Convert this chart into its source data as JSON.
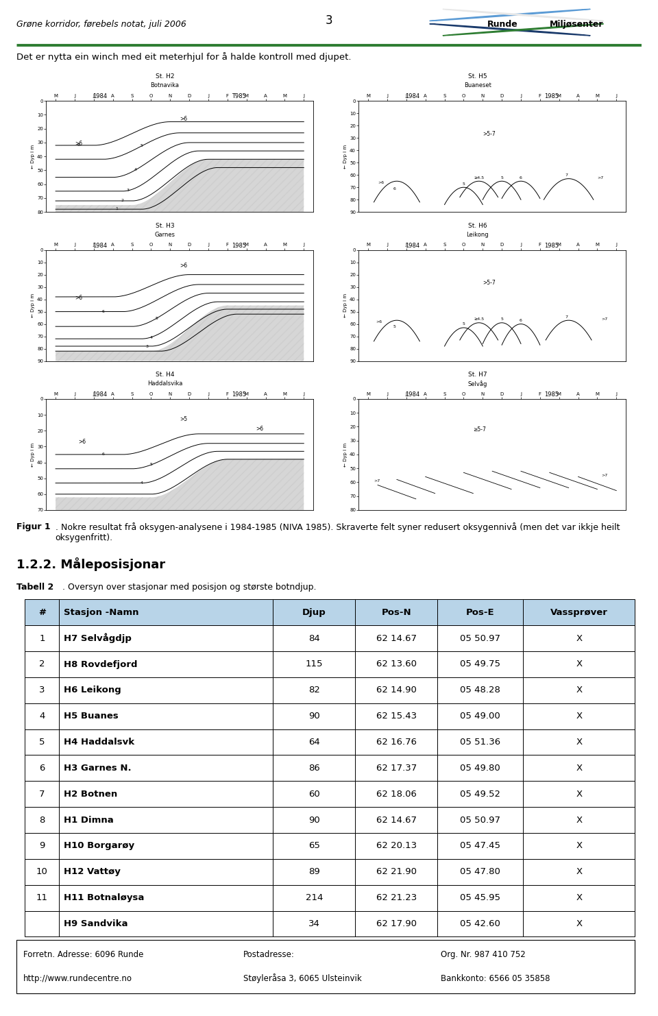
{
  "page_number": "3",
  "header_left": "Grøne korridor, førebels notat, juli 2006",
  "header_right_text1": "Runde",
  "header_right_text2": "Miljøsenter",
  "green_line_color": "#2e7d32",
  "subheader": "Det er nytta ein winch med eit meterhjul for å halde kontroll med djupet.",
  "figur_caption_bold": "Figur 1",
  "figur_caption_normal": ". Nokre resultat frå oksygen-analysene i 1984-1985 (NIVA 1985). Skraverte felt syner redusert oksygennivå (men det var ikkje heilt oksygenfritt).",
  "section_heading": "1.2.2. Måleposisjonar",
  "tabell_label": "Tabell 2",
  "tabell_text": ". Oversyn over stasjonar med posisjon og største botndjup.",
  "table_header": [
    "#",
    "Stasjon -Namn",
    "Djup",
    "Pos-N",
    "Pos-E",
    "Vassprøver"
  ],
  "table_header_bg": "#b8d4e8",
  "table_rows": [
    [
      "1",
      "H7 Selvågdjp",
      "84",
      "62 14.67",
      "05 50.97",
      "X"
    ],
    [
      "2",
      "H8 Rovdefjord",
      "115",
      "62 13.60",
      "05 49.75",
      "X"
    ],
    [
      "3",
      "H6 Leikong",
      "82",
      "62 14.90",
      "05 48.28",
      "X"
    ],
    [
      "4",
      "H5 Buanes",
      "90",
      "62 15.43",
      "05 49.00",
      "X"
    ],
    [
      "5",
      "H4 Haddalsvk",
      "64",
      "62 16.76",
      "05 51.36",
      "X"
    ],
    [
      "6",
      "H3 Garnes N.",
      "86",
      "62 17.37",
      "05 49.80",
      "X"
    ],
    [
      "7",
      "H2 Botnen",
      "60",
      "62 18.06",
      "05 49.52",
      "X"
    ],
    [
      "8",
      "H1 Dimna",
      "90",
      "62 14.67",
      "05 50.97",
      "X"
    ],
    [
      "9",
      "H10 Borgarøy",
      "65",
      "62 20.13",
      "05 47.45",
      "X"
    ],
    [
      "10",
      "H12 Vattøy",
      "89",
      "62 21.90",
      "05 47.80",
      "X"
    ],
    [
      "11",
      "H11 Botnaløysa",
      "214",
      "62 21.23",
      "05 45.95",
      "X"
    ],
    [
      "",
      "H9 Sandvika",
      "34",
      "62 17.90",
      "05 42.60",
      "X"
    ]
  ],
  "footer_left1": "Forretn. Adresse: 6096 Runde",
  "footer_left2": "http://www.rundecentre.no",
  "footer_mid1": "Postadresse:",
  "footer_mid2": "Støyleråsa 3, 6065 Ulsteinvik",
  "footer_right1": "Org. Nr. 987 410 752",
  "footer_right2": "Bankkonto: 6566 05 35858",
  "plots": [
    {
      "title1": "St. H2",
      "title2": "Botnavika",
      "year_left": "1984",
      "year_right": "T985",
      "months": [
        "M",
        "J",
        "J",
        "A",
        "S",
        "O",
        "N",
        "D",
        "J",
        "F",
        "M",
        "A",
        "M",
        "J"
      ],
      "ylim": [
        0,
        80
      ],
      "yticks": [
        0,
        10,
        20,
        30,
        40,
        50,
        60,
        70,
        80
      ],
      "type": "filled_diagonal"
    },
    {
      "title1": "St. H5",
      "title2": "Buaneset",
      "year_left": "1984",
      "year_right": "1985",
      "months": [
        "M",
        "J",
        "J",
        "A",
        "S",
        "O",
        "N",
        "D",
        "J",
        "F",
        "M",
        "A",
        "M",
        "J"
      ],
      "ylim": [
        0,
        90
      ],
      "yticks": [
        0,
        10,
        20,
        30,
        40,
        50,
        60,
        70,
        80,
        90
      ],
      "type": "lines_buaneset"
    },
    {
      "title1": "St. H3",
      "title2": "Garnes",
      "year_left": "1984",
      "year_right": "1985",
      "months": [
        "M",
        "J",
        "J",
        "A",
        "S",
        "O",
        "N",
        "D",
        "J",
        "F",
        "M",
        "A",
        "M",
        "J"
      ],
      "ylim": [
        0,
        90
      ],
      "yticks": [
        0,
        10,
        20,
        30,
        40,
        50,
        60,
        70,
        80,
        90
      ],
      "type": "filled_garnes"
    },
    {
      "title1": "St. H6",
      "title2": "Leikong",
      "year_left": "1984",
      "year_right": "1985",
      "months": [
        "M",
        "J",
        "J",
        "A",
        "S",
        "O",
        "N",
        "D",
        "J",
        "F",
        "M",
        "A",
        "M",
        "J"
      ],
      "ylim": [
        0,
        90
      ],
      "yticks": [
        0,
        10,
        20,
        30,
        40,
        50,
        60,
        70,
        80,
        90
      ],
      "type": "lines_leikong"
    },
    {
      "title1": "St. H4",
      "title2": "Haddalsvika",
      "year_left": "1984",
      "year_right": "1985",
      "months": [
        "M",
        "J",
        "J",
        "A",
        "S",
        "O",
        "N",
        "D",
        "J",
        "F",
        "M",
        "A",
        "M",
        "J"
      ],
      "ylim": [
        0,
        70
      ],
      "yticks": [
        0,
        10,
        20,
        30,
        40,
        50,
        60,
        70
      ],
      "type": "filled_haddalsvika"
    },
    {
      "title1": "St. H7",
      "title2": "Selvåg",
      "year_left": "1984",
      "year_right": "1985",
      "months": [
        "M",
        "J",
        "J",
        "A",
        "S",
        "O",
        "N",
        "D",
        "J",
        "F",
        "M",
        "A",
        "M",
        "J"
      ],
      "ylim": [
        0,
        80
      ],
      "yticks": [
        0,
        10,
        20,
        30,
        40,
        50,
        60,
        70,
        80
      ],
      "type": "lines_selvag"
    }
  ],
  "bg_color": "#ffffff",
  "col_starts_fig": [
    0.038,
    0.09,
    0.415,
    0.54,
    0.665,
    0.795
  ],
  "col_ends_fig": [
    0.09,
    0.415,
    0.54,
    0.665,
    0.795,
    0.965
  ]
}
